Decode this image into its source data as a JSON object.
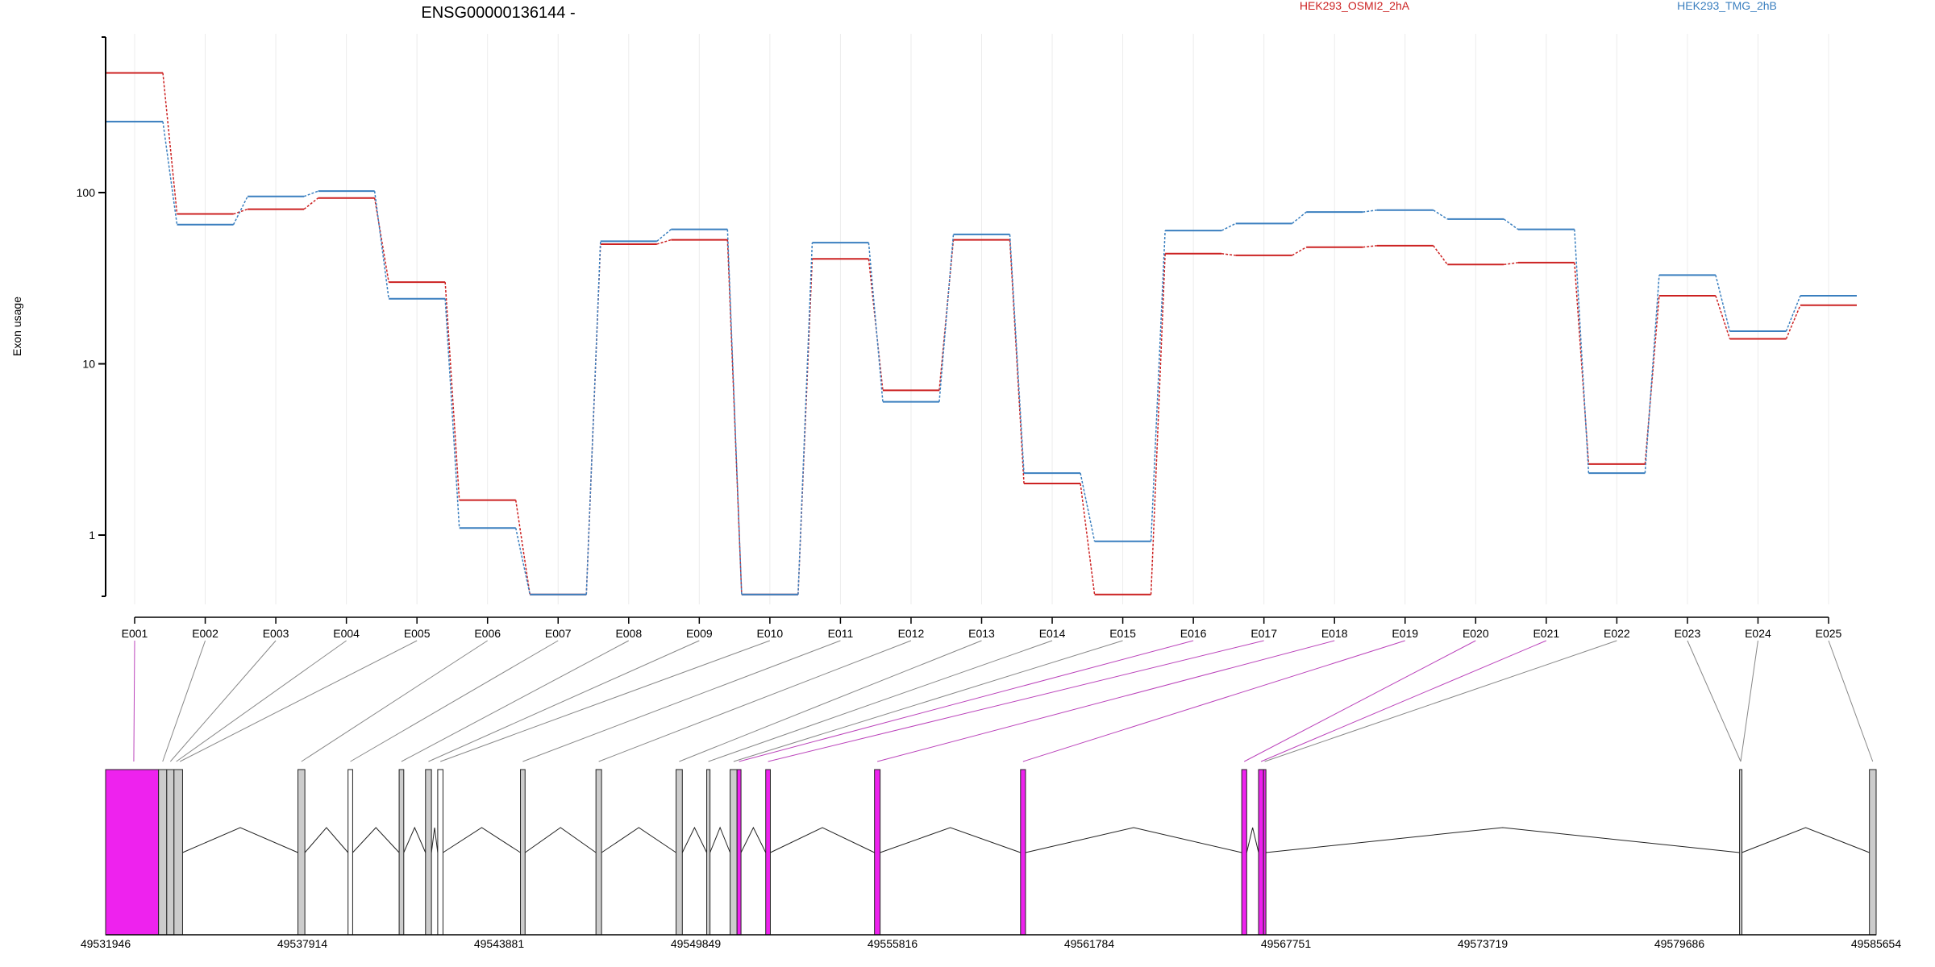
{
  "title": "ENSG00000136144 -",
  "ylabel": "Exon usage",
  "legend": [
    {
      "name": "HEK293_OSMI2_2hA",
      "color": "#cc2222"
    },
    {
      "name": "HEK293_TMG_2hB",
      "color": "#3a7fbf"
    }
  ],
  "chart_data": {
    "type": "line",
    "scale": "log",
    "title": "ENSG00000136144 -",
    "ylabel": "Exon usage",
    "yticks": [
      "1",
      "10",
      "100"
    ],
    "categories": [
      "E001",
      "E002",
      "E003",
      "E004",
      "E005",
      "E006",
      "E007",
      "E008",
      "E009",
      "E010",
      "E011",
      "E012",
      "E013",
      "E014",
      "E015",
      "E016",
      "E017",
      "E018",
      "E019",
      "E020",
      "E021",
      "E022",
      "E023",
      "E024",
      "E025"
    ],
    "series": [
      {
        "name": "HEK293_OSMI2_2hA",
        "color": "#cc2222",
        "values": [
          500,
          75,
          80,
          93,
          30,
          1.6,
          0.45,
          50,
          53,
          0.45,
          41,
          7,
          53,
          2.0,
          0.45,
          44,
          43,
          48,
          49,
          38,
          39,
          2.6,
          25,
          14,
          22
        ]
      },
      {
        "name": "HEK293_TMG_2hB",
        "color": "#3a7fbf",
        "values": [
          260,
          65,
          95,
          102,
          24,
          1.1,
          0.45,
          52,
          61,
          0.45,
          51,
          6,
          57,
          2.3,
          0.92,
          60,
          66,
          77,
          79,
          70,
          61,
          2.3,
          33,
          15.5,
          25
        ]
      }
    ],
    "genome_ticks": [
      "49531946",
      "49537914",
      "49543881",
      "49549849",
      "49555816",
      "49561784",
      "49567751",
      "49573719",
      "49579686",
      "49585654"
    ],
    "exons": [
      {
        "start": 49531946,
        "end": 49533552,
        "color": "#ee22ee"
      },
      {
        "start": 49533552,
        "end": 49533800,
        "color": "#cccccc"
      },
      {
        "start": 49533800,
        "end": 49534020,
        "color": "#cccccc"
      },
      {
        "start": 49534020,
        "end": 49534280,
        "color": "#cccccc"
      },
      {
        "start": 49537780,
        "end": 49537990,
        "color": "#cccccc"
      },
      {
        "start": 49539300,
        "end": 49539440,
        "color": "#ffffff"
      },
      {
        "start": 49540850,
        "end": 49540990,
        "color": "#cccccc"
      },
      {
        "start": 49541650,
        "end": 49541830,
        "color": "#cccccc"
      },
      {
        "start": 49542020,
        "end": 49542180,
        "color": "#ffffff"
      },
      {
        "start": 49544530,
        "end": 49544670,
        "color": "#cccccc"
      },
      {
        "start": 49546820,
        "end": 49546990,
        "color": "#cccccc"
      },
      {
        "start": 49549250,
        "end": 49549440,
        "color": "#cccccc"
      },
      {
        "start": 49550180,
        "end": 49550280,
        "color": "#cccccc"
      },
      {
        "start": 49550890,
        "end": 49551100,
        "color": "#cccccc"
      },
      {
        "start": 49551100,
        "end": 49551220,
        "color": "#ee22ee"
      },
      {
        "start": 49551970,
        "end": 49552110,
        "color": "#ee22ee"
      },
      {
        "start": 49555270,
        "end": 49555440,
        "color": "#ee22ee"
      },
      {
        "start": 49559700,
        "end": 49559850,
        "color": "#ee22ee"
      },
      {
        "start": 49566410,
        "end": 49566560,
        "color": "#ee22ee"
      },
      {
        "start": 49566920,
        "end": 49567070,
        "color": "#ee22ee"
      },
      {
        "start": 49567070,
        "end": 49567140,
        "color": "#ee22ee"
      },
      {
        "start": 49581510,
        "end": 49581580,
        "color": "#cccccc"
      },
      {
        "start": 49585450,
        "end": 49585654,
        "color": "#cccccc"
      }
    ],
    "mapping": [
      {
        "exon": 0,
        "to": 49532800,
        "color": "#bb44bb"
      },
      {
        "exon": 1,
        "to": 49533676,
        "color": "#888888"
      },
      {
        "exon": 2,
        "to": 49533910,
        "color": "#888888"
      },
      {
        "exon": 3,
        "to": 49534090,
        "color": "#888888"
      },
      {
        "exon": 4,
        "to": 49534200,
        "color": "#888888"
      },
      {
        "exon": 5,
        "to": 49537885,
        "color": "#888888"
      },
      {
        "exon": 6,
        "to": 49539370,
        "color": "#888888"
      },
      {
        "exon": 7,
        "to": 49540920,
        "color": "#888888"
      },
      {
        "exon": 8,
        "to": 49541740,
        "color": "#888888"
      },
      {
        "exon": 9,
        "to": 49542100,
        "color": "#888888"
      },
      {
        "exon": 10,
        "to": 49544600,
        "color": "#888888"
      },
      {
        "exon": 11,
        "to": 49546905,
        "color": "#888888"
      },
      {
        "exon": 12,
        "to": 49549345,
        "color": "#888888"
      },
      {
        "exon": 13,
        "to": 49550230,
        "color": "#888888"
      },
      {
        "exon": 14,
        "to": 49550995,
        "color": "#888888"
      },
      {
        "exon": 15,
        "to": 49551160,
        "color": "#bb44bb"
      },
      {
        "exon": 16,
        "to": 49552040,
        "color": "#bb44bb"
      },
      {
        "exon": 17,
        "to": 49555355,
        "color": "#bb44bb"
      },
      {
        "exon": 18,
        "to": 49559775,
        "color": "#bb44bb"
      },
      {
        "exon": 19,
        "to": 49566485,
        "color": "#bb44bb"
      },
      {
        "exon": 20,
        "to": 49566995,
        "color": "#bb44bb"
      },
      {
        "exon": 21,
        "to": 49567105,
        "color": "#888888"
      },
      {
        "exon": 22,
        "to": 49581545,
        "color": "#888888"
      },
      {
        "exon": 23,
        "to": 49581545,
        "color": "#888888"
      },
      {
        "exon": 24,
        "to": 49585550,
        "color": "#888888"
      }
    ]
  }
}
